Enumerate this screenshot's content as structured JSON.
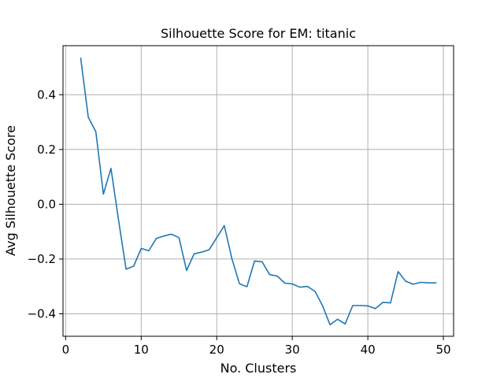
{
  "chart_data": {
    "type": "line",
    "title": "Silhouette Score  for EM: titanic",
    "xlabel": "No. Clusters",
    "ylabel": "Avg Silhouette Score",
    "xlim": [
      -0.35,
      51.35
    ],
    "ylim": [
      -0.482,
      0.579
    ],
    "xticks": [
      0,
      10,
      20,
      30,
      40,
      50
    ],
    "yticks": [
      -0.4,
      -0.2,
      0.0,
      0.2,
      0.4
    ],
    "xtick_labels": [
      "0",
      "10",
      "20",
      "30",
      "40",
      "50"
    ],
    "ytick_labels": [
      "−0.4",
      "−0.2",
      "0.0",
      "0.2",
      "0.4"
    ],
    "grid": true,
    "color": "#1f77b4",
    "series": [
      {
        "x": [
          2,
          3,
          4,
          5,
          6,
          7,
          8,
          9,
          10,
          11,
          12,
          13,
          14,
          15,
          16,
          17,
          18,
          19,
          20,
          21,
          22,
          23,
          24,
          25,
          26,
          27,
          28,
          29,
          30,
          31,
          32,
          33,
          34,
          35,
          36,
          37,
          38,
          39,
          40,
          41,
          42,
          43,
          44,
          45,
          46,
          47,
          48,
          49
        ],
        "values": [
          0.533,
          0.318,
          0.265,
          0.037,
          0.131,
          -0.057,
          -0.237,
          -0.226,
          -0.161,
          -0.17,
          -0.125,
          -0.116,
          -0.109,
          -0.122,
          -0.242,
          -0.181,
          -0.175,
          -0.166,
          -0.122,
          -0.078,
          -0.198,
          -0.29,
          -0.301,
          -0.207,
          -0.21,
          -0.257,
          -0.262,
          -0.288,
          -0.291,
          -0.303,
          -0.3,
          -0.318,
          -0.37,
          -0.44,
          -0.42,
          -0.437,
          -0.37,
          -0.37,
          -0.371,
          -0.381,
          -0.358,
          -0.36,
          -0.246,
          -0.281,
          -0.292,
          -0.285,
          -0.287,
          -0.287
        ]
      }
    ]
  }
}
